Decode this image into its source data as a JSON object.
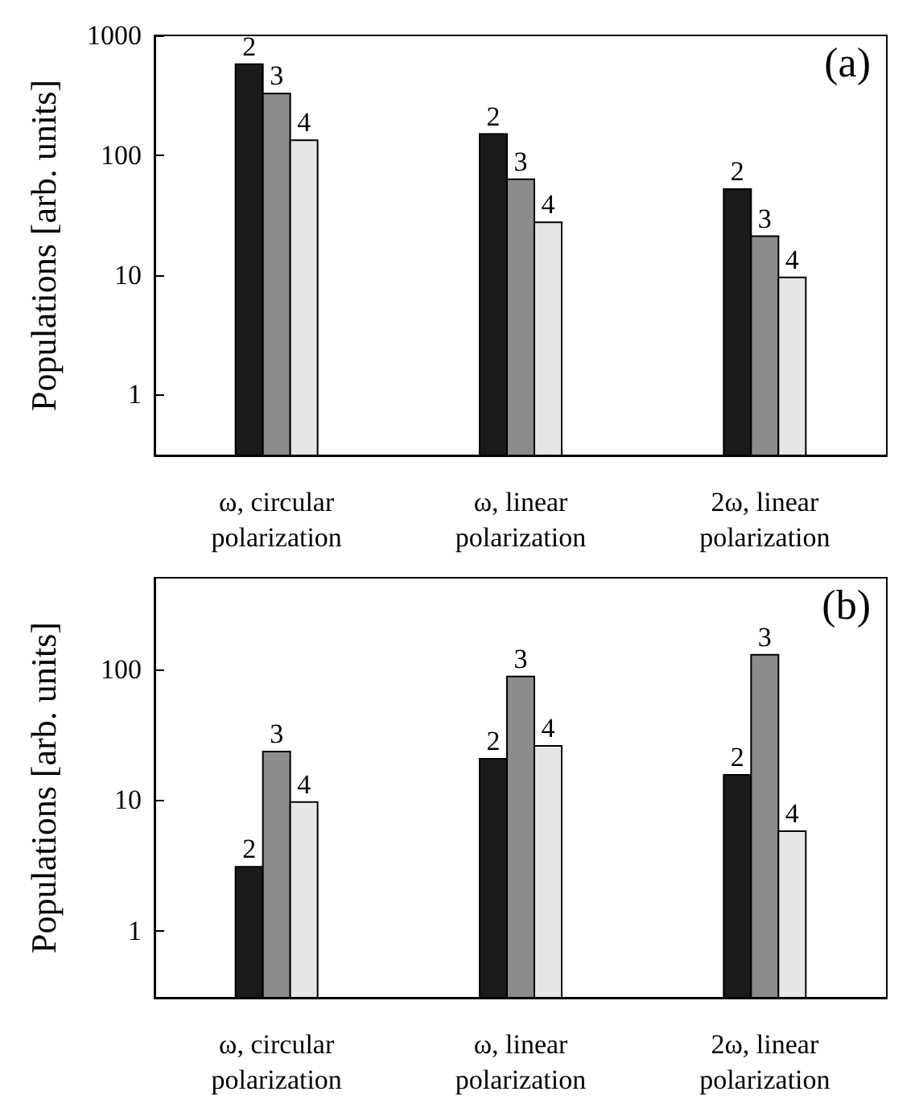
{
  "chart_data": [
    {
      "type": "bar",
      "ylabel": "Populations [arb. units]",
      "annotations": [
        "(a)"
      ],
      "log": "y",
      "legend": false,
      "grid": false,
      "categories": [
        "ω, circular\npolarization",
        "ω, linear\npolarization",
        "2ω, linear\npolarization"
      ],
      "ylim": [
        0.31,
        1000
      ],
      "yticks": [
        1,
        10,
        100,
        1000
      ],
      "series": [
        {
          "name": "2",
          "color": "#1a1a1a",
          "values": [
            575,
            150,
            52
          ]
        },
        {
          "name": "3",
          "color": "#8c8c8c",
          "values": [
            327,
            63,
            21
          ]
        },
        {
          "name": "4",
          "color": "#e6e6e6",
          "values": [
            133,
            27.5,
            9.5
          ]
        }
      ]
    },
    {
      "type": "bar",
      "ylabel": "Populations [arb. units]",
      "annotations": [
        "(b)"
      ],
      "log": "y",
      "legend": false,
      "grid": false,
      "categories": [
        "ω, circular\npolarization",
        "ω, linear\npolarization",
        "2ω, linear\npolarization"
      ],
      "ylim": [
        0.31,
        500
      ],
      "yticks": [
        1,
        10,
        100
      ],
      "series": [
        {
          "name": "2",
          "color": "#1a1a1a",
          "values": [
            3.1,
            20.7,
            15.6
          ]
        },
        {
          "name": "3",
          "color": "#8c8c8c",
          "values": [
            23.5,
            88,
            129
          ]
        },
        {
          "name": "4",
          "color": "#e6e6e6",
          "values": [
            9.7,
            26,
            5.8
          ]
        }
      ]
    }
  ]
}
